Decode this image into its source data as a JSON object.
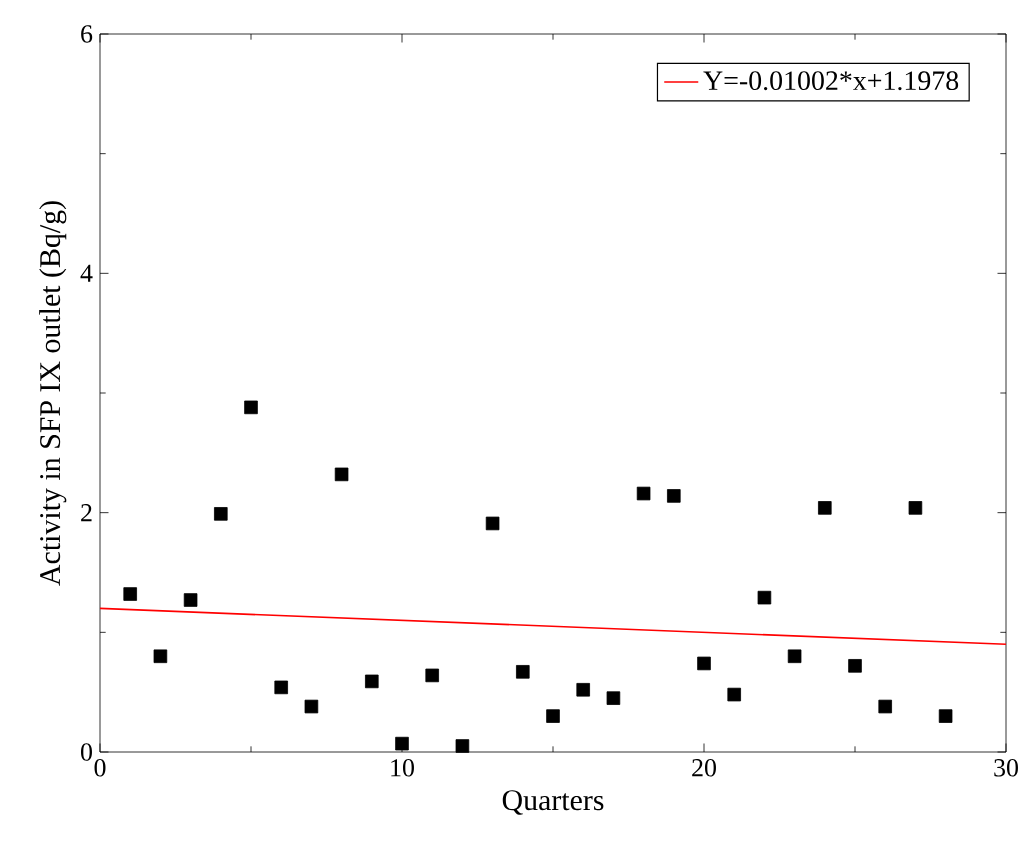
{
  "chart_data": {
    "type": "scatter",
    "xlabel": "Quarters",
    "ylabel": "Activity in SFP IX outlet (Bq/g)",
    "xlim": [
      0,
      30
    ],
    "ylim": [
      0,
      6
    ],
    "xticks": [
      0,
      10,
      20,
      30
    ],
    "yticks": [
      0,
      2,
      4,
      6
    ],
    "grid": false,
    "legend": "top right",
    "series": [
      {
        "color": "#000000",
        "marker": "square",
        "x": [
          1,
          2,
          3,
          4,
          5,
          6,
          7,
          8,
          9,
          10,
          11,
          12,
          13,
          14,
          15,
          16,
          17,
          18,
          19,
          20,
          21,
          22,
          23,
          24,
          25,
          26,
          27,
          28
        ],
        "values": [
          1.32,
          0.8,
          1.27,
          1.99,
          2.88,
          0.54,
          0.38,
          2.32,
          0.59,
          0.07,
          0.64,
          0.05,
          1.91,
          0.67,
          0.3,
          0.52,
          0.45,
          2.16,
          2.14,
          0.74,
          0.48,
          1.29,
          0.8,
          2.04,
          0.72,
          0.38,
          2.04,
          0.3
        ]
      },
      {
        "type": "line",
        "name": "Y=-0.01002*x+1.1978",
        "color": "#ff0000",
        "marker": "none",
        "line_style": "solid",
        "x": [
          0,
          30
        ],
        "values": [
          1.2,
          0.9
        ]
      }
    ]
  }
}
